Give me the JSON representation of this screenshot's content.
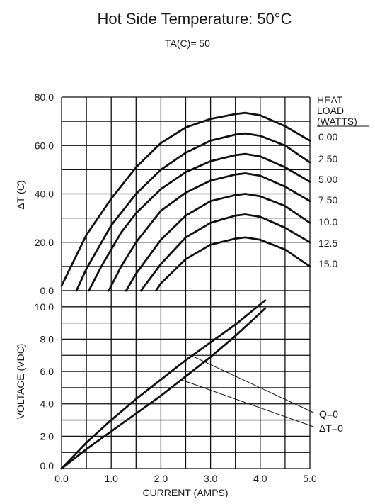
{
  "title": "Hot Side Temperature: 50°C",
  "subtitle": "TA(C)= 50",
  "chart_data": [
    {
      "type": "line",
      "ylabel": "ΔT (C)",
      "xlim": [
        0,
        5
      ],
      "ylim": [
        0,
        80
      ],
      "grid": true,
      "yticks": [
        "0.0",
        "20.0",
        "40.0",
        "60.0",
        "80.0"
      ],
      "legend_title": "HEAT LOAD (WATTS)",
      "legend_placement": "right",
      "series": [
        {
          "name": "0.00",
          "x": [
            0,
            0.5,
            1.0,
            1.5,
            2.0,
            2.5,
            3.0,
            3.5,
            3.7,
            4.0,
            4.5,
            5.0
          ],
          "y": [
            2,
            23,
            38,
            51,
            61,
            67.5,
            71,
            73,
            73.5,
            72.5,
            68,
            62
          ]
        },
        {
          "name": "2.50",
          "x": [
            0.3,
            0.5,
            1.0,
            1.5,
            2.0,
            2.5,
            3.0,
            3.5,
            3.7,
            4.0,
            4.5,
            5.0
          ],
          "y": [
            0,
            9,
            27,
            40,
            50,
            57,
            62,
            64.5,
            65,
            64,
            60,
            53
          ]
        },
        {
          "name": "5.00",
          "x": [
            0.55,
            0.8,
            1.2,
            1.5,
            2.0,
            2.5,
            3.0,
            3.5,
            3.7,
            4.0,
            4.5,
            5.0
          ],
          "y": [
            0,
            10,
            24,
            32,
            42,
            49,
            53.5,
            56,
            56.5,
            55.5,
            51,
            45
          ]
        },
        {
          "name": "7.50",
          "x": [
            0.95,
            1.2,
            1.5,
            2.0,
            2.5,
            3.0,
            3.5,
            3.7,
            4.0,
            4.5,
            5.0
          ],
          "y": [
            0,
            10,
            20,
            33,
            40.5,
            45.5,
            48,
            48.5,
            47.5,
            43,
            37
          ]
        },
        {
          "name": "10.0",
          "x": [
            1.3,
            1.5,
            2.0,
            2.5,
            3.0,
            3.5,
            3.7,
            4.0,
            4.5,
            5.0
          ],
          "y": [
            0,
            7,
            21,
            31,
            37,
            39.5,
            40,
            39,
            35,
            28
          ]
        },
        {
          "name": "12.5",
          "x": [
            1.6,
            2.0,
            2.5,
            3.0,
            3.5,
            3.7,
            4.0,
            4.5,
            5.0
          ],
          "y": [
            0,
            11,
            22,
            28,
            31,
            31.5,
            30.5,
            26,
            20
          ]
        },
        {
          "name": "15.0",
          "x": [
            1.9,
            2.0,
            2.5,
            3.0,
            3.5,
            3.7,
            4.0,
            4.5,
            5.0
          ],
          "y": [
            0,
            3,
            13,
            19,
            21.5,
            22,
            21,
            17,
            10
          ]
        }
      ]
    },
    {
      "type": "line",
      "xlabel": "CURRENT (AMPS)",
      "ylabel": "VOLTAGE (VDC)",
      "xlim": [
        0,
        5
      ],
      "ylim": [
        0,
        11
      ],
      "grid": true,
      "xticks": [
        "0.0",
        "1.0",
        "2.0",
        "3.0",
        "4.0",
        "5.0"
      ],
      "yticks": [
        "0.0",
        "2.0",
        "4.0",
        "6.0",
        "8.0",
        "10.0"
      ],
      "series": [
        {
          "name": "Q=0",
          "x": [
            0,
            0.5,
            1.0,
            1.5,
            2.0,
            2.5,
            3.0,
            3.5,
            4.1
          ],
          "y": [
            0,
            1.6,
            3.0,
            4.3,
            5.5,
            6.7,
            7.8,
            8.9,
            10.4
          ]
        },
        {
          "name": "ΔT=0",
          "x": [
            0,
            0.5,
            1.0,
            1.5,
            2.0,
            2.5,
            3.0,
            3.5,
            4.1
          ],
          "y": [
            0,
            1.2,
            2.3,
            3.4,
            4.5,
            5.7,
            6.9,
            8.2,
            9.9
          ]
        }
      ],
      "annotations": [
        "Q=0",
        "ΔT=0"
      ]
    }
  ]
}
